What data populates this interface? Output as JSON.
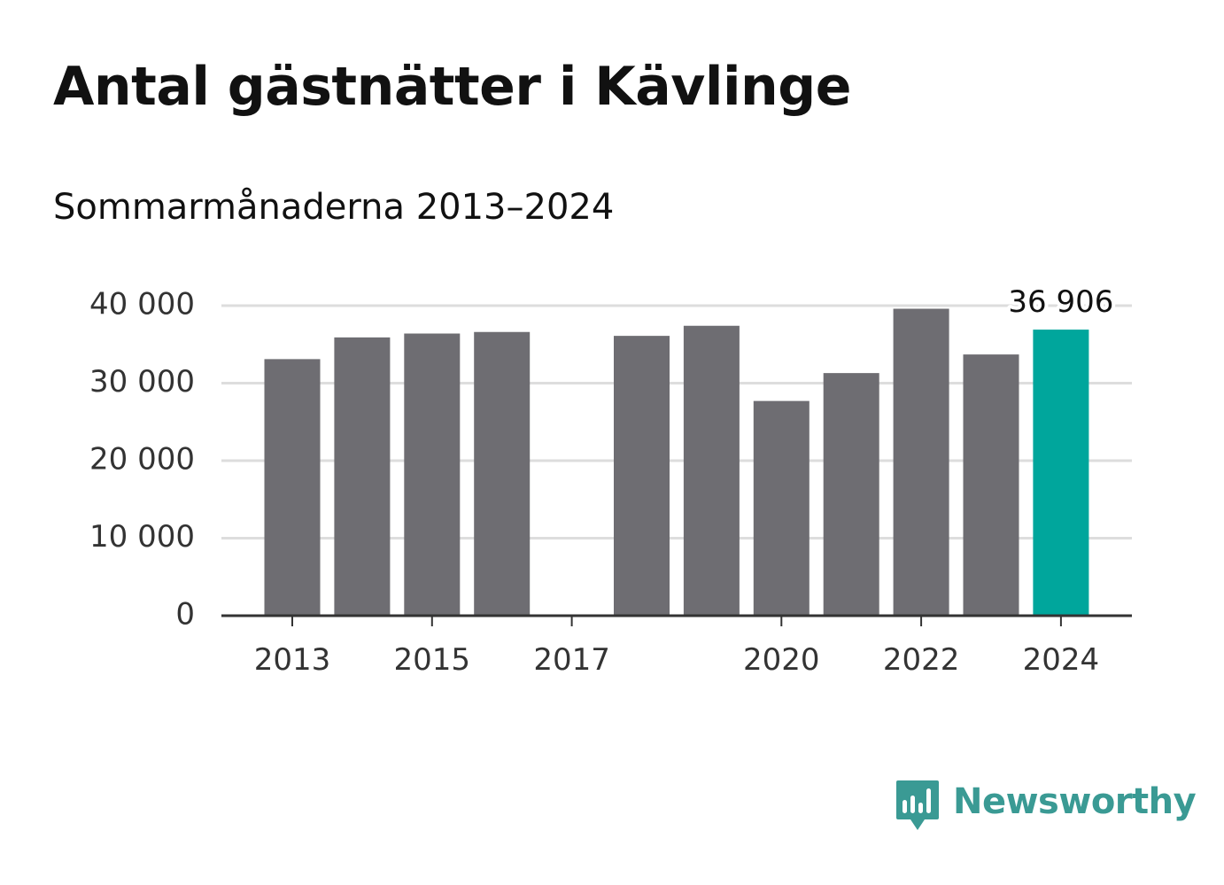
{
  "header": {
    "title": "Antal gästnätter i Kävlinge",
    "subtitle": "Sommarmånaderna 2013–2024"
  },
  "brand": {
    "name": "Newsworthy",
    "logo_icon": "newsworthy-logo-icon",
    "color": "#3a9a94"
  },
  "colors": {
    "bar": "#6e6d72",
    "highlight": "#00a69c",
    "grid": "#dddddd",
    "axis": "#333333"
  },
  "chart_data": {
    "type": "bar",
    "title": "Antal gästnätter i Kävlinge",
    "subtitle": "Sommarmånaderna 2013–2024",
    "xlabel": "",
    "ylabel": "",
    "x": [
      2013,
      2014,
      2015,
      2016,
      2017,
      2018,
      2019,
      2020,
      2021,
      2022,
      2023,
      2024
    ],
    "values": [
      33100,
      35900,
      36400,
      36600,
      null,
      36100,
      37400,
      27700,
      31300,
      39600,
      33700,
      36906
    ],
    "xticks": [
      2013,
      2015,
      2017,
      2020,
      2022,
      2024
    ],
    "xtick_labels": [
      "2013",
      "2015",
      "2017",
      "2020",
      "2022",
      "2024"
    ],
    "yticks": [
      0,
      10000,
      20000,
      30000,
      40000
    ],
    "ytick_labels": [
      "0",
      "10 000",
      "20 000",
      "30 000",
      "40 000"
    ],
    "ylim": [
      0,
      40000
    ],
    "grid": true,
    "highlight_index": 11,
    "data_labels": [
      {
        "index": 11,
        "text": "36 906"
      }
    ]
  }
}
